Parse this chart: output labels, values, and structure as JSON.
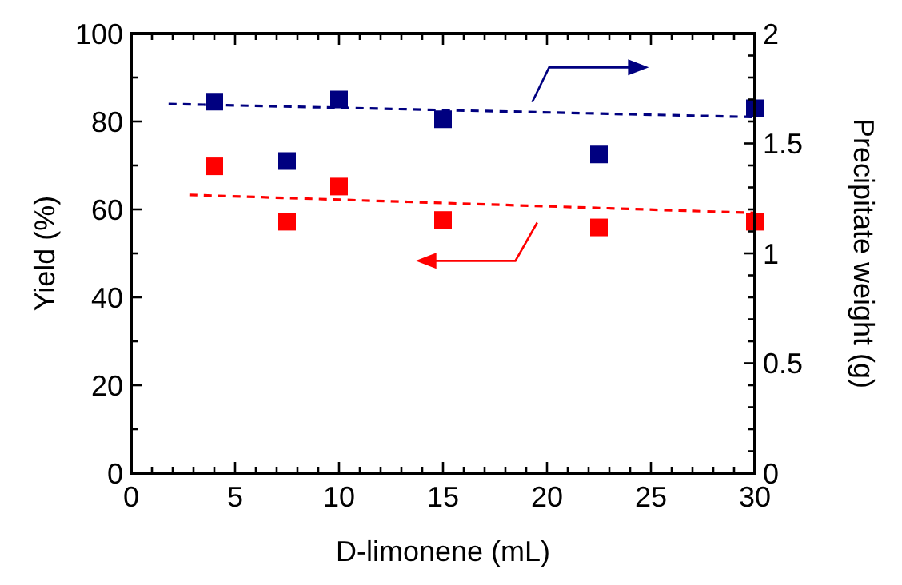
{
  "chart_data": {
    "type": "scatter",
    "xlabel": "D-limonene (mL)",
    "ylabel": "Yield (%)",
    "y2label": "Precipitate weight (g)",
    "xlim": [
      0,
      30
    ],
    "ylim": [
      0,
      100
    ],
    "y2lim": [
      0,
      2
    ],
    "xticks": [
      0,
      {
        "value": 1,
        "label": null
      },
      {
        "value": 2,
        "label": null
      },
      {
        "value": 3,
        "label": null
      },
      {
        "value": 4,
        "label": null
      },
      5,
      {
        "value": 6,
        "label": null
      },
      {
        "value": 7,
        "label": null
      },
      {
        "value": 8,
        "label": null
      },
      {
        "value": 9,
        "label": null
      },
      10,
      {
        "value": 11,
        "label": null
      },
      {
        "value": 12,
        "label": null
      },
      {
        "value": 13,
        "label": null
      },
      {
        "value": 14,
        "label": null
      },
      15,
      {
        "value": 16,
        "label": null
      },
      {
        "value": 17,
        "label": null
      },
      {
        "value": 18,
        "label": null
      },
      {
        "value": 19,
        "label": null
      },
      20,
      {
        "value": 21,
        "label": null
      },
      {
        "value": 22,
        "label": null
      },
      {
        "value": 23,
        "label": null
      },
      {
        "value": 24,
        "label": null
      },
      25,
      {
        "value": 26,
        "label": null
      },
      {
        "value": 27,
        "label": null
      },
      {
        "value": 28,
        "label": null
      },
      {
        "value": 29,
        "label": null
      },
      30
    ],
    "yticks": [
      0,
      {
        "value": 10,
        "label": null
      },
      20,
      {
        "value": 30,
        "label": null
      },
      40,
      {
        "value": 50,
        "label": null
      },
      60,
      {
        "value": 70,
        "label": null
      },
      80,
      {
        "value": 90,
        "label": null
      },
      100
    ],
    "y2ticks": [
      0,
      {
        "value": 0.1,
        "label": null
      },
      {
        "value": 0.2,
        "label": null
      },
      {
        "value": 0.3,
        "label": null
      },
      {
        "value": 0.4,
        "label": null
      },
      0.5,
      {
        "value": 0.6,
        "label": null
      },
      {
        "value": 0.7,
        "label": null
      },
      {
        "value": 0.8,
        "label": null
      },
      {
        "value": 0.9,
        "label": null
      },
      1,
      {
        "value": 1.1,
        "label": null
      },
      {
        "value": 1.2,
        "label": null
      },
      {
        "value": 1.3,
        "label": null
      },
      {
        "value": 1.4,
        "label": null
      },
      1.5,
      {
        "value": 1.6,
        "label": null
      },
      {
        "value": 1.7,
        "label": null
      },
      {
        "value": 1.8,
        "label": null
      },
      {
        "value": 1.9,
        "label": null
      },
      2
    ],
    "grid": false,
    "marker": "square",
    "series": [
      {
        "color": "#ff0000",
        "x": [
          4,
          7.5,
          10,
          15,
          22.5,
          30
        ],
        "values": [
          69.8,
          57.2,
          65.2,
          57.6,
          55.9,
          57.2
        ]
      },
      {
        "axis": "y2",
        "color": "#000080",
        "x": [
          4,
          7.5,
          10,
          15,
          22.5,
          30
        ],
        "values": [
          1.69,
          1.42,
          1.7,
          1.61,
          1.45,
          1.66
        ]
      },
      {
        "type": "line",
        "line_style": "dashed",
        "marker": "none",
        "color": "#ff0000",
        "x": [
          2.8,
          30
        ],
        "values": [
          63.3,
          59.2
        ]
      },
      {
        "type": "line",
        "line_style": "dashed",
        "marker": "none",
        "axis": "y2",
        "color": "#000080",
        "x": [
          1.8,
          30
        ],
        "values": [
          1.68,
          1.62
        ]
      }
    ]
  }
}
